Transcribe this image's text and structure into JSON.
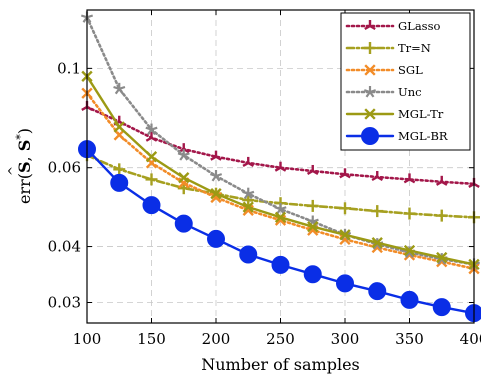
{
  "chart_data": {
    "type": "line",
    "xlabel": "Number of samples",
    "ylabel": "err(Ŝ, S*)",
    "ylabel_parts": {
      "prefix": "err(",
      "hat_symbol": "S",
      "sep": ", ",
      "star_symbol": "S",
      "star": "*",
      "suffix": ")"
    },
    "xlim": [
      100,
      400
    ],
    "ylim": [
      0.027,
      0.135
    ],
    "yscale": "log",
    "grid": true,
    "legend_position": "top-right",
    "x": [
      100,
      125,
      150,
      175,
      200,
      225,
      250,
      275,
      300,
      325,
      350,
      375,
      400
    ],
    "x_ticks": [
      100,
      150,
      200,
      250,
      300,
      350,
      400
    ],
    "x_tick_labels": [
      "100",
      "150",
      "200",
      "250",
      "300",
      "350",
      "400"
    ],
    "y_ticks": [
      0.1,
      0.06,
      0.04,
      0.03
    ],
    "y_tick_labels": [
      "0.1",
      "0.06",
      "0.04",
      "0.03"
    ],
    "series": [
      {
        "name": "GLasso",
        "color": "#a3174a",
        "dash": "dotted",
        "marker": "tri",
        "values": [
          0.082,
          0.076,
          0.07,
          0.066,
          0.0635,
          0.0615,
          0.06,
          0.059,
          0.058,
          0.0572,
          0.0565,
          0.0558,
          0.0552
        ]
      },
      {
        "name": "Tr=N",
        "color": "#a6a020",
        "dash": "dashdot",
        "marker": "plus",
        "values": [
          0.064,
          0.0595,
          0.0565,
          0.054,
          0.0525,
          0.0508,
          0.05,
          0.0493,
          0.0487,
          0.048,
          0.0474,
          0.0469,
          0.0465
        ]
      },
      {
        "name": "SGL",
        "color": "#f28c28",
        "dash": "dotted",
        "marker": "x",
        "values": [
          0.088,
          0.071,
          0.0615,
          0.0555,
          0.0515,
          0.0482,
          0.0458,
          0.0435,
          0.0415,
          0.0398,
          0.0383,
          0.037,
          0.0357
        ]
      },
      {
        "name": "Unc",
        "color": "#8a8a8a",
        "dash": "dotted",
        "marker": "star",
        "values": [
          0.13,
          0.09,
          0.073,
          0.064,
          0.0575,
          0.0525,
          0.0485,
          0.0455,
          0.0425,
          0.0405,
          0.0388,
          0.0375,
          0.0365
        ]
      },
      {
        "name": "MGL-Tr",
        "color": "#9c9a14",
        "dash": "solid",
        "marker": "x",
        "values": [
          0.096,
          0.074,
          0.0635,
          0.057,
          0.0525,
          0.049,
          0.0465,
          0.0443,
          0.0425,
          0.0408,
          0.0392,
          0.0378,
          0.0365
        ]
      },
      {
        "name": "MGL-BR",
        "color": "#0a2ee6",
        "dash": "solid",
        "marker": "circle",
        "values": [
          0.066,
          0.0555,
          0.0495,
          0.045,
          0.0416,
          0.0384,
          0.0364,
          0.0347,
          0.0331,
          0.0318,
          0.0304,
          0.0293,
          0.0284
        ]
      }
    ]
  }
}
